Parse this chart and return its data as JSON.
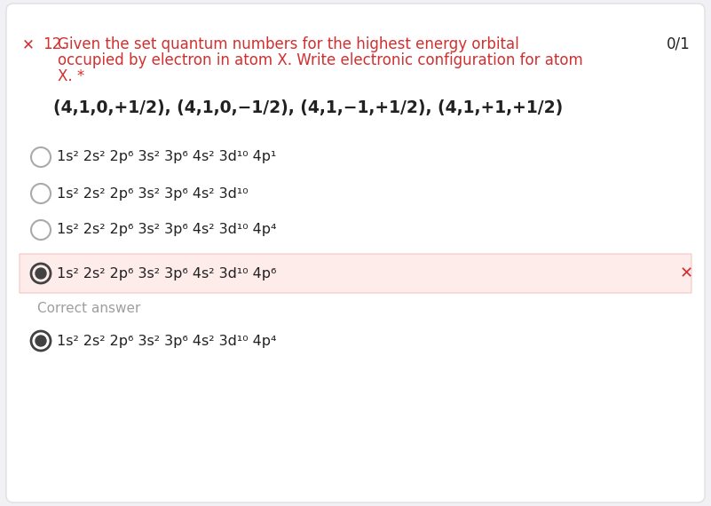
{
  "bg_color": "#f0f0f5",
  "card_color": "#ffffff",
  "card_border": "#e0e0e0",
  "title_red": "#d32f2f",
  "text_dark": "#212121",
  "text_gray": "#9e9e9e",
  "highlight_bg": "#fdecea",
  "highlight_border": "#f5c6c6",
  "score_text": "0/1",
  "question_number": "12.",
  "question_text_line1": "Given the set quantum numbers for the highest energy orbital",
  "question_text_line2": "occupied by electron in atom X. Write electronic configuration for atom",
  "question_text_line3": "X. *",
  "quantum_numbers": "(4,1,0,+1/2), (4,1,0,−1/2), (4,1,−1,+1/2), (4,1,+1,+1/2)",
  "options": [
    "1s² 2s² 2p⁶ 3s² 3p⁶ 4s² 3d¹⁰ 4p¹",
    "1s² 2s² 2p⁶ 3s² 3p⁶ 4s² 3d¹⁰",
    "1s² 2s² 2p⁶ 3s² 3p⁶ 4s² 3d¹⁰ 4p⁴",
    "1s² 2s² 2p⁶ 3s² 3p⁶ 4s² 3d¹⁰ 4p⁶"
  ],
  "selected_option": 3,
  "correct_answer": "1s² 2s² 2p⁶ 3s² 3p⁶ 4s² 3d¹⁰ 4p⁴",
  "correct_answer_label": "Correct answer",
  "radio_outer_color_empty": "#aaaaaa",
  "radio_outer_color_filled": "#424242",
  "radio_inner_color": "#424242",
  "x_mark_color": "#d32f2f"
}
